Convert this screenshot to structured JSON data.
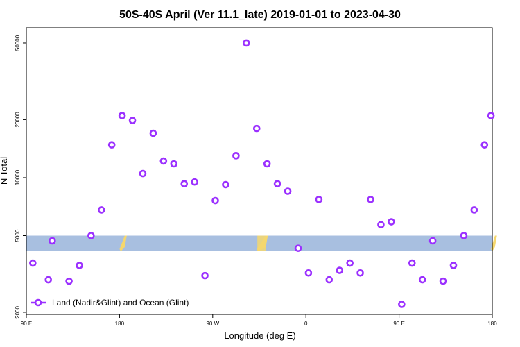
{
  "chart_data": {
    "type": "scatter",
    "title": "50S-40S April (Ver 11.1_late)   2019-01-01 to 2023-04-30",
    "xlabel": "Longitude (deg E)",
    "ylabel": "N Total",
    "x_ticks": [
      "90 E",
      "180",
      "90 W",
      "0",
      "90 E",
      "180"
    ],
    "y_ticks": [
      "2000",
      "5000",
      "10000",
      "20000",
      "50000"
    ],
    "y_scale": "log",
    "xlim": [
      90,
      450
    ],
    "ylim": [
      1950,
      60000
    ],
    "legend": {
      "label": "Land (Nadir&Glint) and Ocean (Glint)",
      "position": "bottom-left"
    },
    "colors": {
      "marker": "#9b30ff",
      "band": "#a8bfe0",
      "land": "#f5d76e"
    },
    "band_range": [
      4150,
      5000
    ],
    "series": [
      {
        "x": [
          95,
          107,
          110,
          123,
          131,
          140,
          148,
          156,
          164,
          172,
          180,
          188,
          196,
          204,
          212,
          220,
          228,
          236,
          244,
          252,
          260,
          268,
          276,
          284,
          292,
          300,
          308,
          316,
          324,
          332,
          340,
          348,
          356,
          364,
          372,
          380,
          388,
          396,
          404,
          412,
          420,
          428,
          436,
          444,
          449
        ],
        "y": [
          3600,
          2950,
          4700,
          2900,
          3500,
          5000,
          6800,
          14800,
          21000,
          19800,
          10500,
          17000,
          12200,
          11800,
          9300,
          9500,
          3100,
          7600,
          9200,
          13000,
          50000,
          18000,
          11800,
          9300,
          8500,
          4300,
          3200,
          7700,
          2950,
          3300,
          3600,
          3200,
          7700,
          5700,
          5900,
          2200,
          3600,
          2950,
          4700,
          2900,
          3500,
          5000,
          6800,
          14800,
          21000
        ]
      }
    ]
  }
}
